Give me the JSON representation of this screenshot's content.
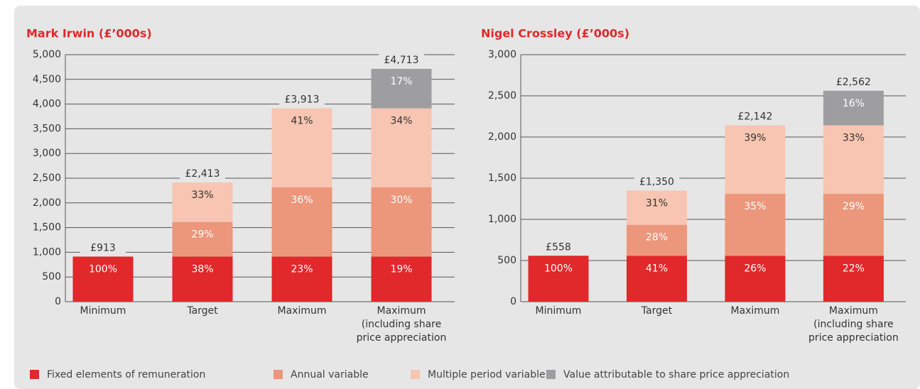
{
  "chart_data": [
    {
      "type": "stacked_bar",
      "title": "Mark Irwin (£’000s)",
      "categories": [
        "Minimum",
        "Target",
        "Maximum",
        "Maximum (including share price appreciation"
      ],
      "series": [
        {
          "name": "Fixed elements of remuneration",
          "color": "#e1282a",
          "values": [
            913,
            913,
            913,
            913
          ],
          "segment_labels": [
            "100%",
            "38%",
            "23%",
            "19%"
          ]
        },
        {
          "name": "Annual variable",
          "color": "#ec967b",
          "values": [
            null,
            700,
            1400,
            1400
          ],
          "segment_labels": [
            null,
            "29%",
            "36%",
            "30%"
          ]
        },
        {
          "name": "Multiple period variable",
          "color": "#f7c5b1",
          "values": [
            null,
            800,
            1600,
            1600
          ],
          "segment_labels": [
            null,
            "33%",
            "41%",
            "34%"
          ]
        },
        {
          "name": "Value attributable to share price appreciation",
          "color": "#9e9da0",
          "values": [
            null,
            null,
            null,
            800
          ],
          "segment_labels": [
            null,
            null,
            null,
            "17%"
          ]
        }
      ],
      "total_labels": [
        "£913",
        "£2,413",
        "£3,913",
        "£4,713"
      ],
      "ylim": [
        0,
        5000
      ],
      "yticks": [
        0,
        500,
        {
          "value": 1000,
          "label": "1,000"
        },
        {
          "value": 1500,
          "label": "1,500"
        },
        {
          "value": 2000,
          "label": "2,000"
        },
        {
          "value": 2500,
          "label": "2,500"
        },
        {
          "value": 3000,
          "label": "3,000"
        },
        {
          "value": 3500,
          "label": "3,500"
        },
        {
          "value": 4000,
          "label": "4,000"
        },
        {
          "value": 4500,
          "label": "4,500"
        },
        {
          "value": 5000,
          "label": "5,000"
        }
      ],
      "grid": true
    },
    {
      "type": "stacked_bar",
      "title": "Nigel Crossley (£’000s)",
      "categories": [
        "Minimum",
        "Target",
        "Maximum",
        "Maximum (including share price appreciation"
      ],
      "series": [
        {
          "color": "#e1282a",
          "values": [
            558,
            558,
            558,
            558
          ],
          "segment_labels": [
            "100%",
            "41%",
            "26%",
            "22%"
          ]
        },
        {
          "color": "#ec967b",
          "values": [
            null,
            376,
            752,
            752
          ],
          "segment_labels": [
            null,
            "28%",
            "35%",
            "29%"
          ]
        },
        {
          "color": "#f7c5b1",
          "values": [
            null,
            416,
            832,
            832
          ],
          "segment_labels": [
            null,
            "31%",
            "39%",
            "33%"
          ]
        },
        {
          "color": "#9e9da0",
          "values": [
            null,
            null,
            null,
            420
          ],
          "segment_labels": [
            null,
            null,
            null,
            "16%"
          ]
        }
      ],
      "total_labels": [
        "£558",
        "£1,350",
        "£2,142",
        "£2,562"
      ],
      "ylim": [
        0,
        3000
      ],
      "yticks": [
        0,
        500,
        {
          "value": 1000,
          "label": "1,000"
        },
        {
          "value": 1500,
          "label": "1,500"
        },
        {
          "value": 2000,
          "label": "2,000"
        },
        {
          "value": 2500,
          "label": "2,500"
        },
        {
          "value": 3000,
          "label": "3,000"
        }
      ],
      "grid": true
    }
  ]
}
